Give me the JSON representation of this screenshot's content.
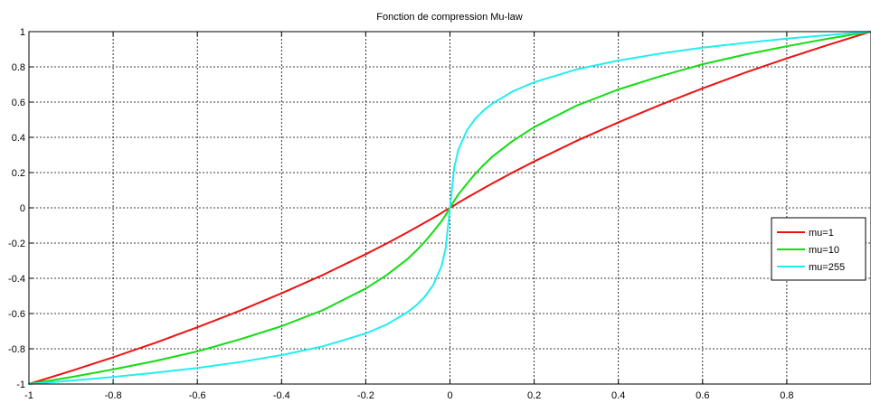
{
  "chart_data": {
    "type": "line",
    "title": "Fonction de compression Mu-law",
    "xlabel": "",
    "ylabel": "",
    "xlim": [
      -1,
      1
    ],
    "ylim": [
      -1,
      1
    ],
    "grid": true,
    "legend_position": "right",
    "x_ticks": [
      -1,
      -0.8,
      -0.6,
      -0.4,
      -0.2,
      0,
      0.2,
      0.4,
      0.6,
      0.8
    ],
    "x_tick_labels": [
      "-1",
      "-0.8",
      "-0.6",
      "-0.4",
      "-0.2",
      "0",
      "0.2",
      "0.4",
      "0.6",
      "0.8"
    ],
    "y_ticks": [
      -1,
      -0.8,
      -0.6,
      -0.4,
      -0.2,
      0,
      0.2,
      0.4,
      0.6,
      0.8,
      1
    ],
    "y_tick_labels": [
      "-1",
      "-0.8",
      "-0.6",
      "-0.4",
      "-0.2",
      "0",
      "0.2",
      "0.4",
      "0.6",
      "0.8",
      "1"
    ],
    "x": [
      -1,
      -0.9,
      -0.8,
      -0.7,
      -0.6,
      -0.5,
      -0.4,
      -0.3,
      -0.2,
      -0.15,
      -0.1,
      -0.08,
      -0.06,
      -0.04,
      -0.02,
      -0.01,
      0,
      0.01,
      0.02,
      0.04,
      0.06,
      0.08,
      0.1,
      0.15,
      0.2,
      0.3,
      0.4,
      0.5,
      0.6,
      0.7,
      0.8,
      0.9,
      1
    ],
    "series": [
      {
        "name": "mu=1",
        "color": "#ee1111",
        "values": [
          -1,
          -0.926,
          -0.848,
          -0.766,
          -0.678,
          -0.585,
          -0.485,
          -0.379,
          -0.263,
          -0.202,
          -0.138,
          -0.111,
          -0.084,
          -0.057,
          -0.029,
          -0.014,
          0,
          0.014,
          0.029,
          0.057,
          0.084,
          0.111,
          0.138,
          0.202,
          0.263,
          0.379,
          0.485,
          0.585,
          0.678,
          0.766,
          0.848,
          0.926,
          1
        ]
      },
      {
        "name": "mu=10",
        "color": "#11dd11",
        "values": [
          -1,
          -0.961,
          -0.917,
          -0.869,
          -0.815,
          -0.747,
          -0.672,
          -0.579,
          -0.458,
          -0.381,
          -0.289,
          -0.243,
          -0.193,
          -0.136,
          -0.076,
          -0.04,
          0,
          0.04,
          0.076,
          0.136,
          0.193,
          0.243,
          0.289,
          0.381,
          0.458,
          0.579,
          0.672,
          0.747,
          0.815,
          0.869,
          0.917,
          0.961,
          1
        ]
      },
      {
        "name": "mu=255",
        "color": "#22eeee",
        "values": [
          -1,
          -0.981,
          -0.96,
          -0.936,
          -0.909,
          -0.876,
          -0.836,
          -0.785,
          -0.713,
          -0.662,
          -0.591,
          -0.553,
          -0.505,
          -0.439,
          -0.33,
          -0.228,
          0,
          0.228,
          0.33,
          0.439,
          0.505,
          0.553,
          0.591,
          0.662,
          0.713,
          0.785,
          0.836,
          0.876,
          0.909,
          0.936,
          0.96,
          0.981,
          1
        ]
      }
    ]
  }
}
